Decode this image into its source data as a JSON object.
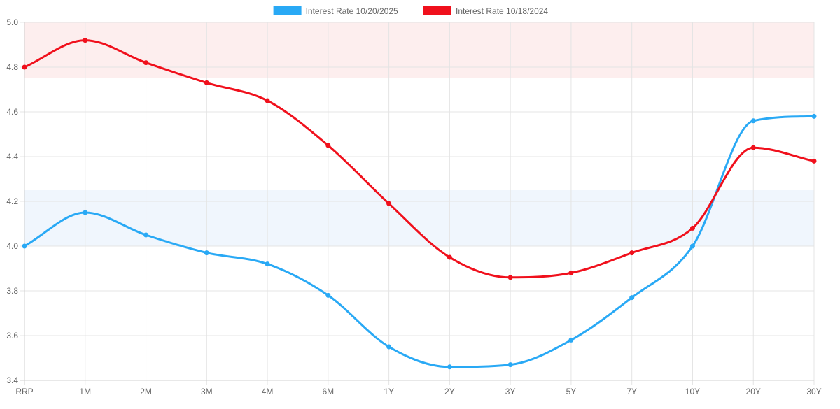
{
  "chart_data": {
    "type": "line",
    "title": "",
    "xlabel": "",
    "ylabel": "",
    "categories": [
      "RRP",
      "1M",
      "2M",
      "3M",
      "4M",
      "6M",
      "1Y",
      "2Y",
      "3Y",
      "5Y",
      "7Y",
      "10Y",
      "20Y",
      "30Y"
    ],
    "ylim": [
      3.4,
      5.0
    ],
    "y_ticks": [
      "3.4",
      "3.6",
      "3.8",
      "4.0",
      "4.2",
      "4.4",
      "4.6",
      "4.8",
      "5.0"
    ],
    "grid": true,
    "legend_position": "top-center",
    "bands": [
      {
        "from": 4.75,
        "to": 5.0,
        "color": "#fdeeee"
      },
      {
        "from": 4.0,
        "to": 4.25,
        "color": "#f0f6fd"
      }
    ],
    "series": [
      {
        "name": "Interest Rate 10/20/2025",
        "color": "#29a9f5",
        "values": [
          4.0,
          4.15,
          4.05,
          3.97,
          3.92,
          3.78,
          3.55,
          3.46,
          3.47,
          3.58,
          3.77,
          4.0,
          4.56,
          4.58
        ]
      },
      {
        "name": "Interest Rate 10/18/2024",
        "color": "#f0101c",
        "values": [
          4.8,
          4.92,
          4.82,
          4.73,
          4.65,
          4.45,
          4.19,
          3.95,
          3.86,
          3.88,
          3.97,
          4.08,
          4.44,
          4.38
        ]
      }
    ]
  }
}
